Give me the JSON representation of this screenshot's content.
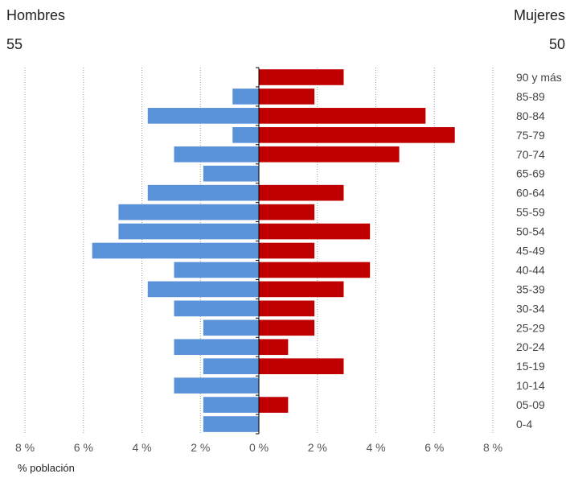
{
  "header": {
    "men_label": "Hombres",
    "men_total": "55",
    "women_label": "Mujeres",
    "women_total": "50"
  },
  "chart_data": {
    "type": "bar",
    "orientation": "horizontal-population-pyramid",
    "categories": [
      "90 y más",
      "85-89",
      "80-84",
      "75-79",
      "70-74",
      "65-69",
      "60-64",
      "55-59",
      "50-54",
      "45-49",
      "40-44",
      "35-39",
      "30-34",
      "25-29",
      "20-24",
      "15-19",
      "10-14",
      "05-09",
      "0-4"
    ],
    "series": [
      {
        "name": "Hombres",
        "color": "#5a92d9",
        "values": [
          0,
          0.9,
          3.8,
          0.9,
          2.9,
          1.9,
          3.8,
          4.8,
          4.8,
          5.7,
          2.9,
          3.8,
          2.9,
          1.9,
          2.9,
          1.9,
          2.9,
          1.9,
          1.9
        ]
      },
      {
        "name": "Mujeres",
        "color": "#c00000",
        "values": [
          2.9,
          1.9,
          5.7,
          6.7,
          4.8,
          0,
          2.9,
          1.9,
          3.8,
          1.9,
          3.8,
          2.9,
          1.9,
          1.9,
          1.0,
          2.9,
          0,
          1.0,
          0
        ]
      }
    ],
    "xticks": [
      "8 %",
      "6 %",
      "4 %",
      "2 %",
      "0 %",
      "2 %",
      "4 %",
      "6 %",
      "8 %"
    ],
    "xlim": [
      -8,
      8
    ],
    "xlabel": "% población",
    "grid": true
  }
}
